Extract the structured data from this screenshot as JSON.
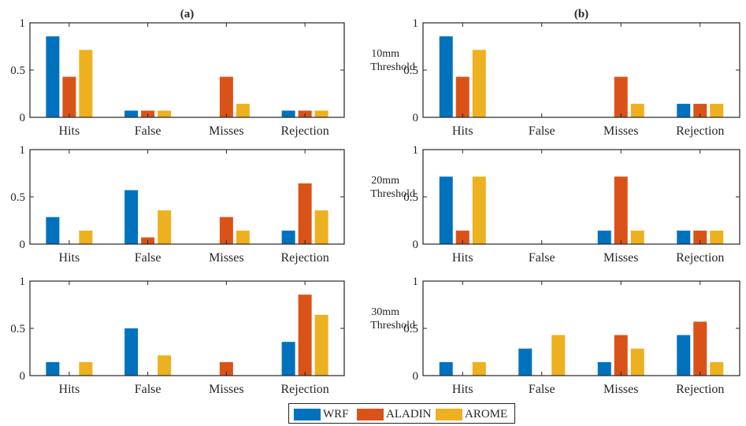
{
  "chart_data": [
    {
      "type": "bar",
      "title": "(a)",
      "row_label": "",
      "categories": [
        "Hits",
        "False",
        "Misses",
        "Rejection"
      ],
      "ylim": [
        0,
        1
      ],
      "yticks": [
        "0",
        "0.5",
        "1"
      ],
      "series": [
        {
          "name": "WRF",
          "values": [
            0.857,
            0.071,
            0,
            0.071
          ]
        },
        {
          "name": "ALADIN",
          "values": [
            0.429,
            0.071,
            0.429,
            0.071
          ]
        },
        {
          "name": "AROME",
          "values": [
            0.714,
            0.071,
            0.143,
            0.071
          ]
        }
      ]
    },
    {
      "type": "bar",
      "title": "(b)",
      "row_label": "10mm Threshold",
      "categories": [
        "Hits",
        "False",
        "Misses",
        "Rejection"
      ],
      "ylim": [
        0,
        1
      ],
      "yticks": [
        "0",
        "0.5",
        "1"
      ],
      "series": [
        {
          "name": "WRF",
          "values": [
            0.857,
            0,
            0,
            0.143
          ]
        },
        {
          "name": "ALADIN",
          "values": [
            0.429,
            0,
            0.429,
            0.143
          ]
        },
        {
          "name": "AROME",
          "values": [
            0.714,
            0,
            0.143,
            0.143
          ]
        }
      ]
    },
    {
      "type": "bar",
      "title": "",
      "row_label": "",
      "categories": [
        "Hits",
        "False",
        "Misses",
        "Rejection"
      ],
      "ylim": [
        0,
        1
      ],
      "yticks": [
        "0",
        "0.5",
        "1"
      ],
      "series": [
        {
          "name": "WRF",
          "values": [
            0.286,
            0.571,
            0,
            0.143
          ]
        },
        {
          "name": "ALADIN",
          "values": [
            0,
            0.071,
            0.286,
            0.643
          ]
        },
        {
          "name": "AROME",
          "values": [
            0.143,
            0.357,
            0.143,
            0.357
          ]
        }
      ]
    },
    {
      "type": "bar",
      "title": "",
      "row_label": "20mm Threshold",
      "categories": [
        "Hits",
        "False",
        "Misses",
        "Rejection"
      ],
      "ylim": [
        0,
        1
      ],
      "yticks": [
        "0",
        "0.5",
        "1"
      ],
      "series": [
        {
          "name": "WRF",
          "values": [
            0.714,
            0,
            0.143,
            0.143
          ]
        },
        {
          "name": "ALADIN",
          "values": [
            0.143,
            0,
            0.714,
            0.143
          ]
        },
        {
          "name": "AROME",
          "values": [
            0.714,
            0,
            0.143,
            0.143
          ]
        }
      ]
    },
    {
      "type": "bar",
      "title": "",
      "row_label": "",
      "categories": [
        "Hits",
        "False",
        "Misses",
        "Rejection"
      ],
      "ylim": [
        0,
        1
      ],
      "yticks": [
        "0",
        "0.5",
        "1"
      ],
      "series": [
        {
          "name": "WRF",
          "values": [
            0.143,
            0.5,
            0,
            0.357
          ]
        },
        {
          "name": "ALADIN",
          "values": [
            0,
            0,
            0.143,
            0.857
          ]
        },
        {
          "name": "AROME",
          "values": [
            0.143,
            0.214,
            0,
            0.643
          ]
        }
      ]
    },
    {
      "type": "bar",
      "title": "",
      "row_label": "30mm Threshold",
      "categories": [
        "Hits",
        "False",
        "Misses",
        "Rejection"
      ],
      "ylim": [
        0,
        1
      ],
      "yticks": [
        "0",
        "0.5",
        "1"
      ],
      "series": [
        {
          "name": "WRF",
          "values": [
            0.143,
            0.286,
            0.143,
            0.429
          ]
        },
        {
          "name": "ALADIN",
          "values": [
            0,
            0,
            0.429,
            0.571
          ]
        },
        {
          "name": "AROME",
          "values": [
            0.143,
            0.429,
            0.286,
            0.143
          ]
        }
      ]
    }
  ],
  "legend": {
    "placement": "bottom-center",
    "items": [
      {
        "label": "WRF",
        "color": "#0072BD"
      },
      {
        "label": "ALADIN",
        "color": "#D95319"
      },
      {
        "label": "AROME",
        "color": "#EDB120"
      }
    ]
  },
  "colors": {
    "axes": "#262626",
    "background": "#ffffff"
  }
}
